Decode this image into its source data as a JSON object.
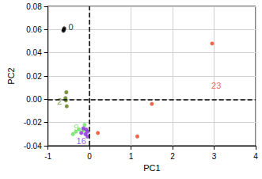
{
  "chart_data": {
    "type": "scatter",
    "x_label": "PC1",
    "y_label": "PC2",
    "xlim": [
      -1,
      4
    ],
    "xticks": [
      -1,
      0,
      1,
      2,
      3,
      4
    ],
    "ylim": [
      -0.04,
      0.08
    ],
    "yticks": [
      -0.04,
      -0.02,
      {
        "value": 0,
        "label": "0.00"
      },
      0.02,
      0.04,
      0.06,
      0.08
    ],
    "grid": true,
    "marker": "circle",
    "series": [
      {
        "color": "#000000",
        "x": [
          -0.63,
          -0.62,
          -0.61
        ],
        "y": [
          0.059,
          0.06,
          0.061
        ]
      },
      {
        "color": "#5a7a14",
        "x": [
          -0.56,
          -0.58,
          -0.57,
          -0.55
        ],
        "y": [
          0.006,
          0.001,
          -0.001,
          -0.006
        ]
      },
      {
        "color": "#66e05a",
        "x": [
          -0.4,
          -0.33,
          -0.25,
          -0.12,
          -0.15
        ],
        "y": [
          -0.03,
          -0.028,
          -0.026,
          -0.022,
          -0.027
        ]
      },
      {
        "color": "#8b2be0",
        "x": [
          -0.2,
          -0.15,
          -0.08,
          -0.05,
          -0.1,
          -0.05
        ],
        "y": [
          -0.029,
          -0.025,
          -0.026,
          -0.028,
          -0.03,
          -0.032
        ]
      },
      {
        "color": "#e8431f",
        "x": [
          0.2,
          1.15,
          1.5,
          2.95
        ],
        "y": [
          -0.029,
          -0.032,
          -0.004,
          0.048
        ]
      }
    ],
    "annotations": [
      {
        "text": "0",
        "x": -0.45,
        "y": 0.062,
        "color": "#000000"
      },
      {
        "text": "2",
        "x": -0.72,
        "y": -0.002,
        "color": "#5a7a14"
      },
      {
        "text": "9",
        "x": -0.32,
        "y": -0.024,
        "color": "#66e05a"
      },
      {
        "text": "16",
        "x": -0.2,
        "y": -0.036,
        "color": "#8b2be0"
      },
      {
        "text": "23",
        "x": 3.05,
        "y": 0.012,
        "color": "#e8431f"
      }
    ]
  }
}
